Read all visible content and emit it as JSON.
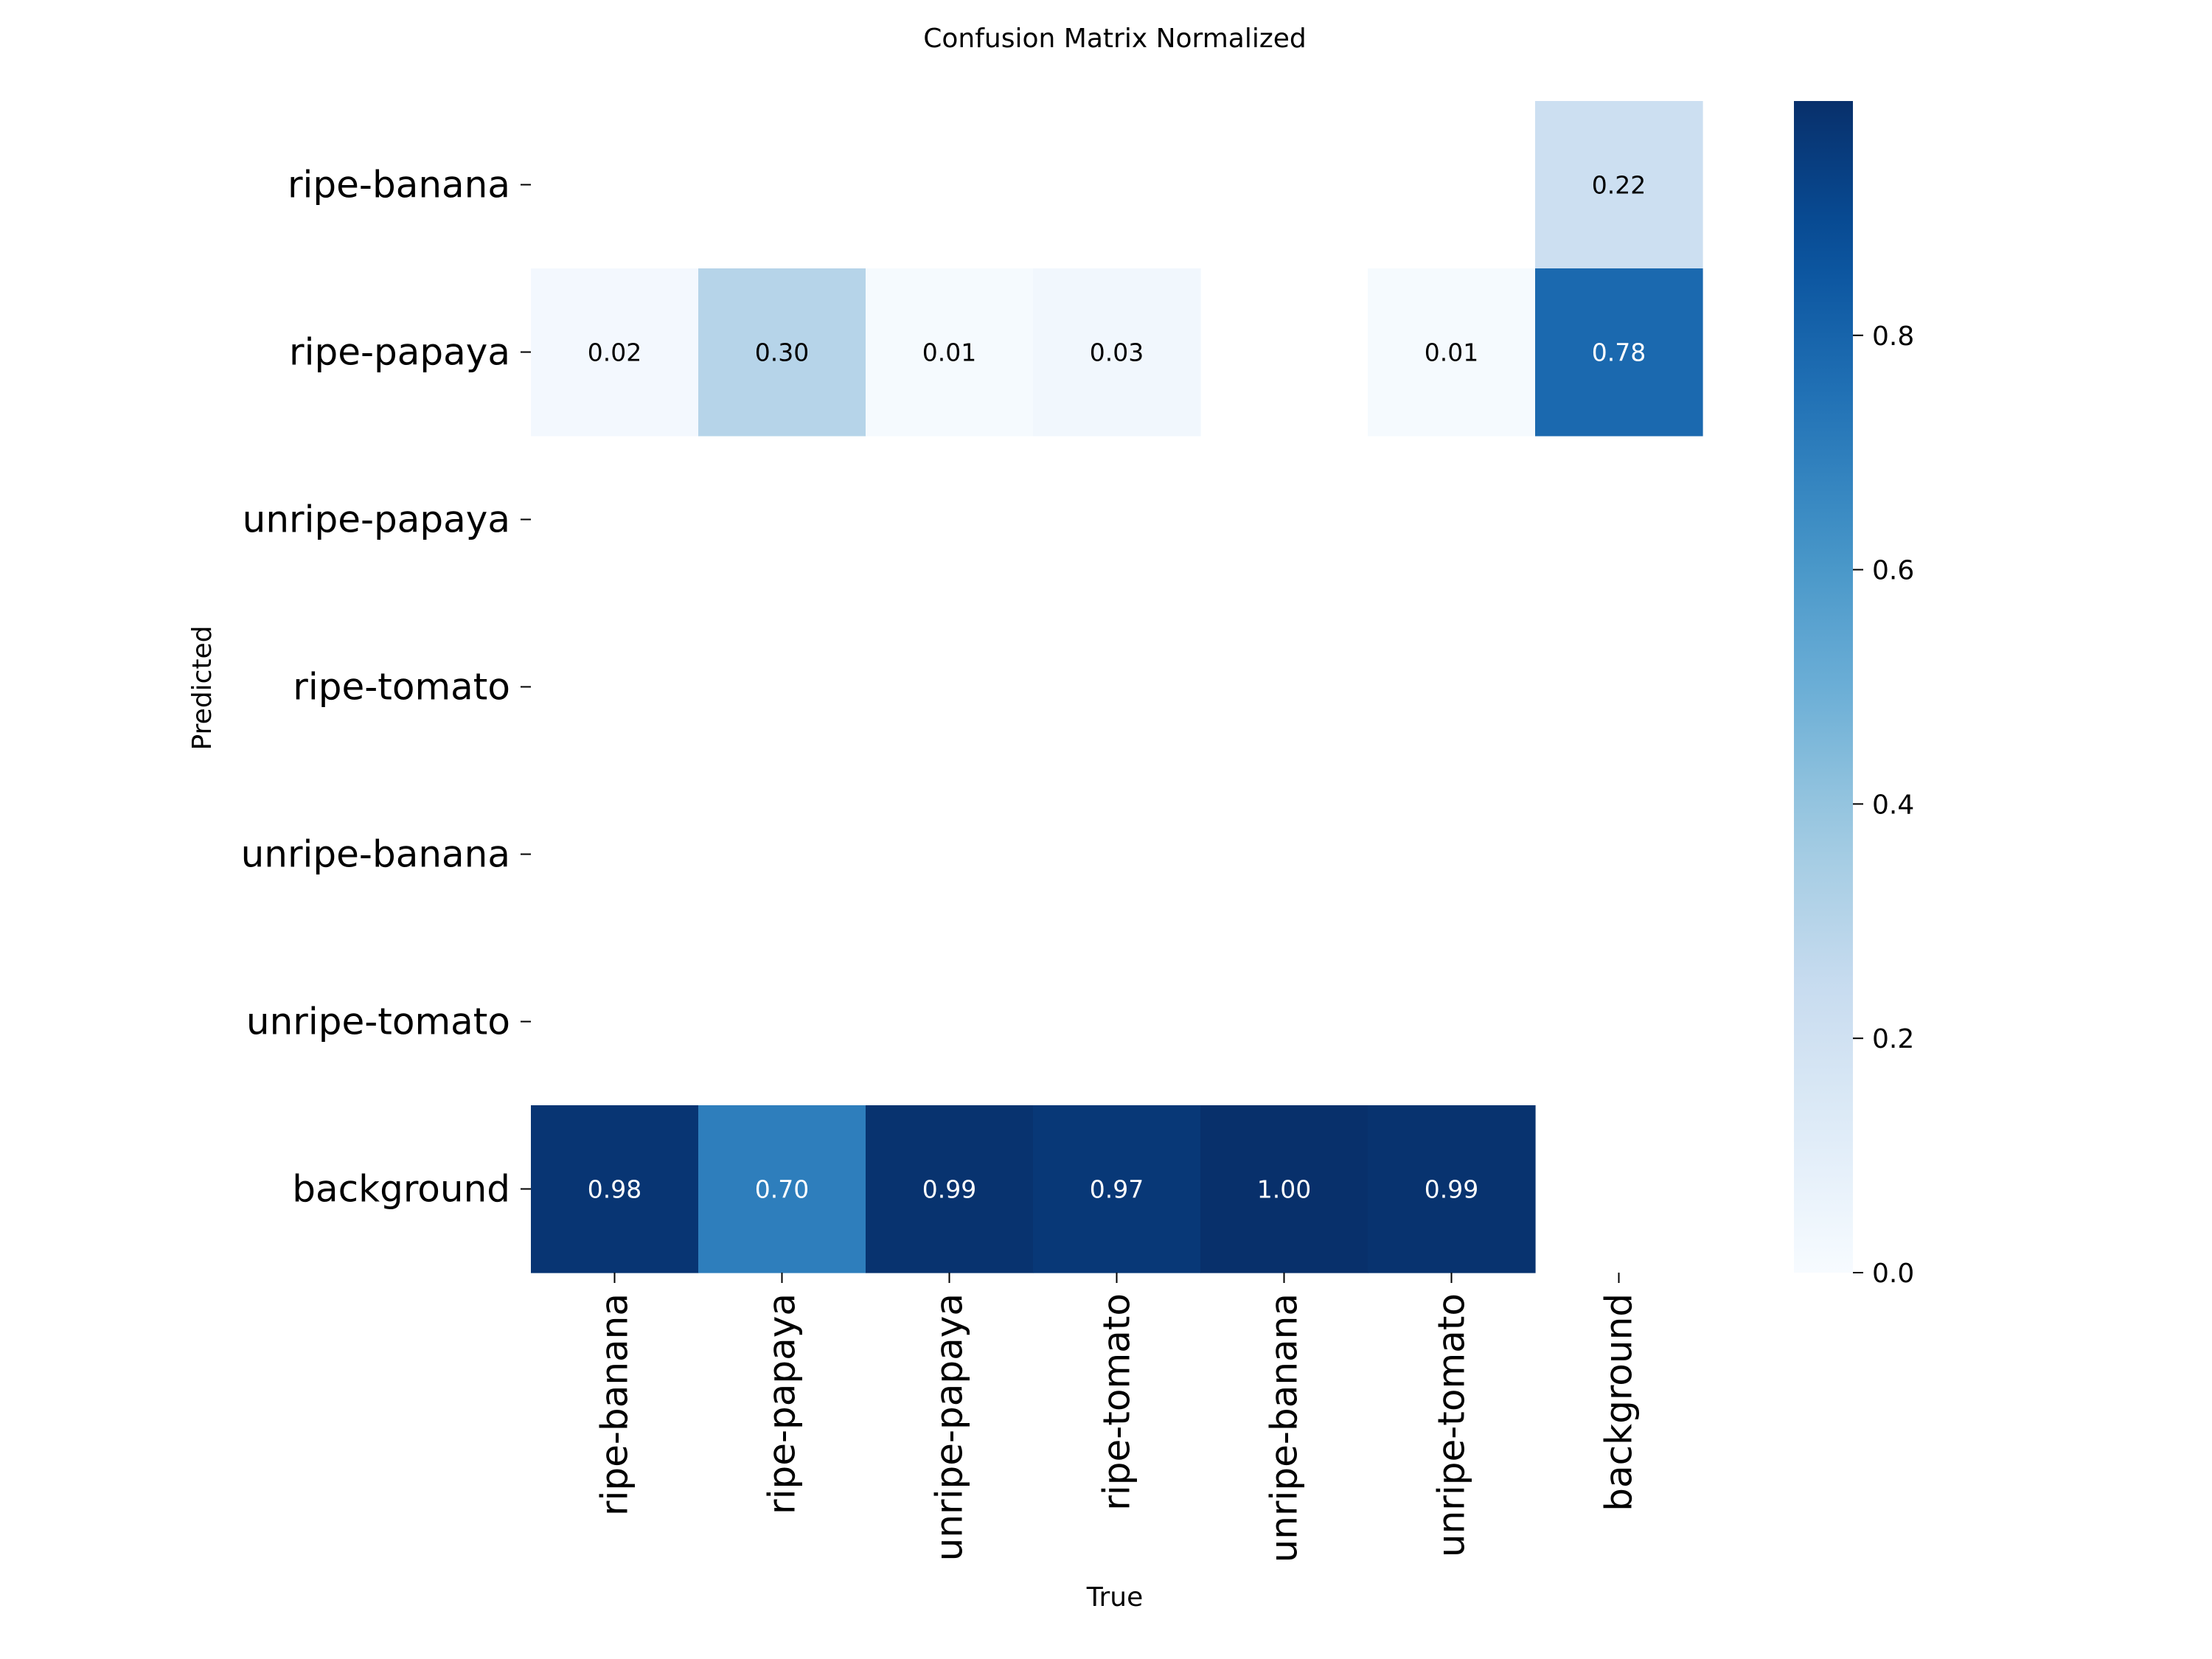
{
  "chart_data": {
    "type": "heatmap",
    "title": "Confusion Matrix Normalized",
    "xlabel": "True",
    "ylabel": "Predicted",
    "x_categories": [
      "ripe-banana",
      "ripe-papaya",
      "unripe-papaya",
      "ripe-tomato",
      "unripe-banana",
      "unripe-tomato",
      "background"
    ],
    "y_categories": [
      "ripe-banana",
      "ripe-papaya",
      "unripe-papaya",
      "ripe-tomato",
      "unripe-banana",
      "unripe-tomato",
      "background"
    ],
    "values": [
      [
        null,
        null,
        null,
        null,
        null,
        null,
        0.22
      ],
      [
        0.02,
        0.3,
        0.01,
        0.03,
        null,
        0.01,
        0.78
      ],
      [
        null,
        null,
        null,
        null,
        null,
        null,
        null
      ],
      [
        null,
        null,
        null,
        null,
        null,
        null,
        null
      ],
      [
        null,
        null,
        null,
        null,
        null,
        null,
        null
      ],
      [
        null,
        null,
        null,
        null,
        null,
        null,
        null
      ],
      [
        0.98,
        0.7,
        0.99,
        0.97,
        1.0,
        0.99,
        null
      ]
    ],
    "value_format": "0.00",
    "colormap": "Blues",
    "colorbar": {
      "range": [
        0,
        1
      ],
      "ticks": [
        0.0,
        0.2,
        0.4,
        0.6,
        0.8
      ],
      "tick_labels": [
        "0.0",
        "0.2",
        "0.4",
        "0.6",
        "0.8"
      ]
    },
    "grid": false
  }
}
